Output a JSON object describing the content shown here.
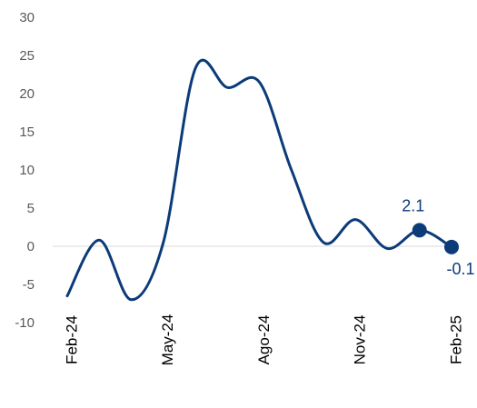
{
  "chart_data": {
    "type": "line",
    "title": "",
    "xlabel": "",
    "ylabel": "",
    "ylim": [
      -10,
      30
    ],
    "yticks": [
      30,
      25,
      20,
      15,
      10,
      5,
      0,
      -5,
      -10
    ],
    "ytick_labels": [
      "30",
      "25",
      "20",
      "15",
      "10",
      "5",
      "0",
      "-5",
      "-10"
    ],
    "xtick_labels": [
      "Feb-24",
      "May-24",
      "Ago-24",
      "Nov-24",
      "Feb-25"
    ],
    "xtick_positions": [
      0,
      3,
      6,
      9,
      12
    ],
    "grid": false,
    "zero_line": true,
    "x": [
      0,
      1,
      2,
      3,
      4,
      5,
      6,
      7,
      8,
      9,
      10,
      11,
      12
    ],
    "series": [
      {
        "values": [
          -6.5,
          0.8,
          -7.0,
          0.5,
          23.3,
          20.8,
          21.5,
          10.0,
          0.5,
          3.5,
          -0.3,
          2.1,
          -0.1
        ],
        "color": "#0b3b78"
      }
    ],
    "highlighted_points": [
      {
        "x": 11,
        "value": 2.1,
        "label": "2.1",
        "label_position": "above"
      },
      {
        "x": 12,
        "value": -0.1,
        "label": "-0.1",
        "label_position": "below"
      }
    ],
    "colors": {
      "line": "#0b3b78",
      "zero_line": "#d9d9d9",
      "tick_text": "#595959",
      "xtick_text": "#000000"
    }
  }
}
